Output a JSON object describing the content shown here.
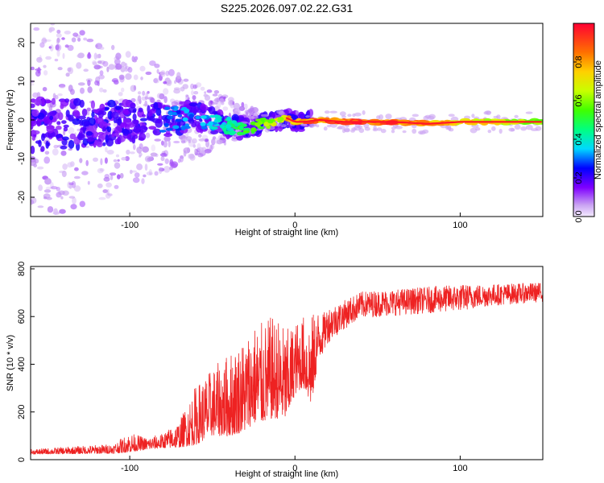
{
  "figure_title": "S225.2026.097.02.22.G31",
  "chart_data": [
    {
      "type": "heatmap",
      "name": "spectrogram",
      "xlabel": "Height of straight line (km)",
      "ylabel": "Frequency (Hz)",
      "xlim": [
        -160,
        150
      ],
      "ylim": [
        -25,
        25
      ],
      "xticks": [
        -100,
        0,
        100
      ],
      "xtick_labels": [
        "-100",
        "0",
        "100"
      ],
      "yticks": [
        -20,
        -10,
        0,
        10,
        20
      ],
      "ytick_labels": [
        "-20",
        "-10",
        "0",
        "10",
        "20"
      ],
      "colorbar": {
        "label": "Normalized spectral amplitude",
        "range": [
          0,
          1
        ],
        "ticks": [
          0.0,
          0.2,
          0.4,
          0.6,
          0.8
        ],
        "tick_labels": [
          "0.0",
          "0.2",
          "0.4",
          "0.6",
          "0.8"
        ]
      },
      "ridge": {
        "x": [
          -160,
          -120,
          -100,
          -80,
          -60,
          -45,
          -35,
          -28,
          -20,
          -12,
          -5,
          0,
          5,
          15,
          30,
          60,
          80,
          100,
          120,
          150
        ],
        "frequency": [
          -1,
          -1,
          -0.5,
          0,
          1,
          -1,
          -2,
          -2,
          -1,
          -0.5,
          0.5,
          -0.5,
          -0.5,
          0,
          -0.5,
          -0.5,
          -1,
          -0.5,
          -0.5,
          -0.5
        ],
        "amplitude": [
          0.18,
          0.2,
          0.25,
          0.3,
          0.35,
          0.4,
          0.5,
          0.55,
          0.6,
          0.7,
          0.8,
          0.85,
          0.9,
          0.92,
          0.95,
          0.93,
          0.85,
          0.82,
          0.75,
          0.6
        ]
      }
    },
    {
      "type": "line",
      "name": "snr",
      "xlabel": "Height of straight line (km)",
      "ylabel": "SNR (10 * v/v)",
      "xlim": [
        -160,
        150
      ],
      "ylim": [
        0,
        810
      ],
      "xticks": [
        -100,
        0,
        100
      ],
      "xtick_labels": [
        "-100",
        "0",
        "100"
      ],
      "yticks": [
        0,
        200,
        400,
        600,
        800
      ],
      "ytick_labels": [
        "0",
        "200",
        "400",
        "600",
        "800"
      ],
      "color": "#ee2222",
      "envelope": {
        "x": [
          -160,
          -110,
          -100,
          -90,
          -80,
          -70,
          -60,
          -50,
          -40,
          -30,
          -25,
          -20,
          -15,
          -10,
          -5,
          0,
          5,
          10,
          15,
          20,
          30,
          40,
          60,
          80,
          100,
          120,
          150
        ],
        "base": [
          30,
          40,
          60,
          60,
          70,
          90,
          150,
          200,
          220,
          260,
          300,
          300,
          320,
          320,
          300,
          380,
          410,
          360,
          520,
          580,
          620,
          660,
          670,
          680,
          690,
          700,
          710
        ],
        "spread": [
          20,
          40,
          80,
          50,
          60,
          110,
          250,
          280,
          350,
          400,
          420,
          420,
          430,
          420,
          380,
          300,
          300,
          380,
          180,
          150,
          120,
          110,
          110,
          110,
          110,
          90,
          80
        ]
      }
    }
  ]
}
